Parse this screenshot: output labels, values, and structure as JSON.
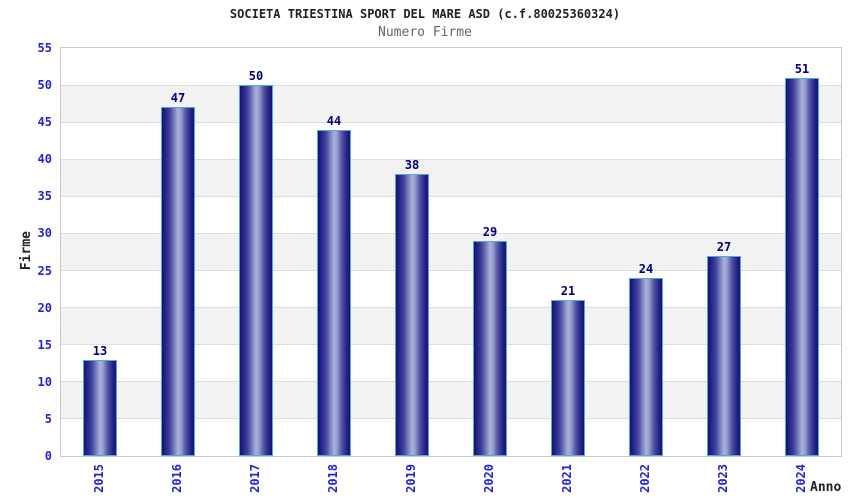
{
  "chart_data": {
    "type": "bar",
    "title": "SOCIETA TRIESTINA SPORT DEL MARE ASD (c.f.80025360324)",
    "subtitle": "Numero Firme",
    "xlabel": "Anno",
    "ylabel": "Firme",
    "categories": [
      "2015",
      "2016",
      "2017",
      "2018",
      "2019",
      "2020",
      "2021",
      "2022",
      "2023",
      "2024"
    ],
    "values": [
      13,
      47,
      50,
      44,
      38,
      29,
      21,
      24,
      27,
      51
    ],
    "ylim": [
      0,
      55
    ],
    "ytick_step": 5,
    "grid": "horizontal-bands",
    "legend": "none",
    "colors": {
      "background": "#ffffff",
      "title": "#222222",
      "subtitle": "#666666",
      "tick_label": "#2323d6",
      "value_label": "#00007e",
      "axis_title": "#222222",
      "bar_dark": "#15156b",
      "bar_mid": "#23238b",
      "bar_light": "#a9b1db",
      "bar_border": "#57a5e9",
      "band": "#f2f2f2",
      "gridline": "#dddddd",
      "plot_border": "#c9c9c9"
    }
  }
}
